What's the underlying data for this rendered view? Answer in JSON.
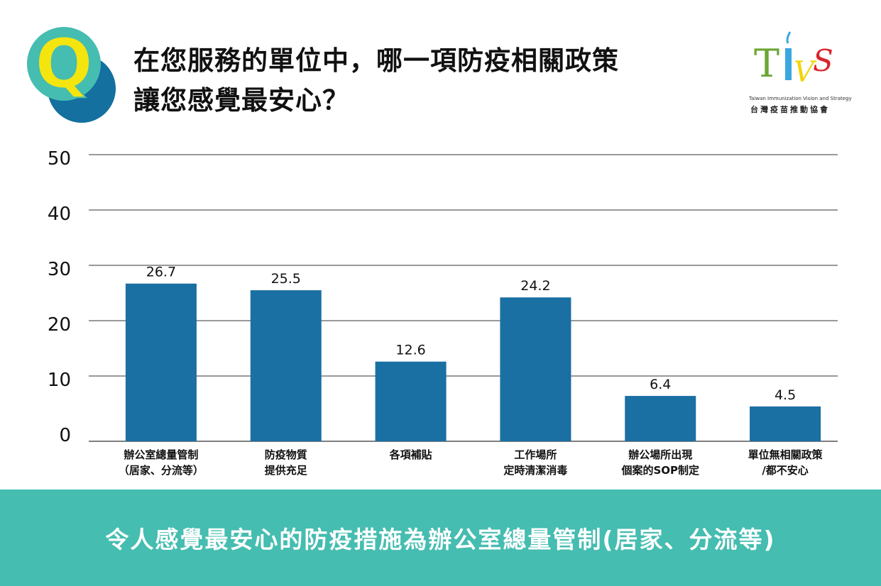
{
  "header": {
    "title_line1": "在您服務的單位中，哪一項防疫相關政策",
    "title_line2": "讓您感覺最安心？",
    "q_letter": "Q"
  },
  "logo": {
    "letters": "TIVS",
    "english": "Taiwan Immunization Vision and Strategy",
    "chinese": "台灣疫苗推動協會"
  },
  "chart_data": {
    "type": "bar",
    "title": "在您服務的單位中，哪一項防疫相關政策讓您感覺最安心？",
    "categories": [
      [
        "辦公室總量管制",
        "（居家、分流等）"
      ],
      [
        "防疫物質",
        "提供充足"
      ],
      [
        "各項補貼",
        ""
      ],
      [
        "工作場所",
        "定時清潔消毒"
      ],
      [
        "辦公場所出現",
        "個案的SOP制定"
      ],
      [
        "單位無相關政策",
        "/都不安心"
      ]
    ],
    "values": [
      26.7,
      25.5,
      12.6,
      24.2,
      6.4,
      4.5
    ],
    "labels": [
      "26.7",
      "25.5",
      "12.6",
      "24.2",
      "6.4",
      "4.5"
    ],
    "yticks": [
      "0",
      "10",
      "20",
      "30",
      "40",
      "50"
    ],
    "ylim": [
      0,
      50
    ],
    "grid": true,
    "xlabel": "",
    "ylabel": "",
    "bar_color": "#1a6fa3"
  },
  "footer": {
    "conclusion": "令人感覺最安心的防疫措施為辦公室總量管制(居家、分流等)"
  }
}
